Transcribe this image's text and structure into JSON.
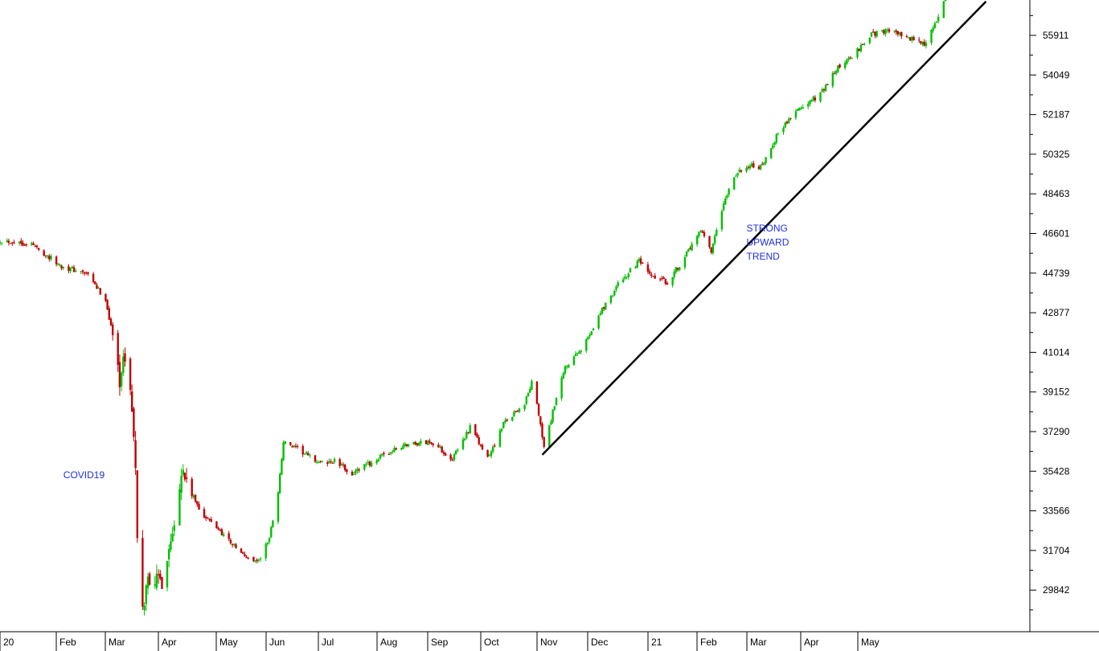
{
  "chart_data": {
    "type": "candlestick",
    "title": "",
    "xlabel": "",
    "ylabel": "",
    "ylim": [
      28400,
      57500
    ],
    "y_tick_labels": [
      "55911",
      "54049",
      "52187",
      "50325",
      "48463",
      "46601",
      "44739",
      "42877",
      "41014",
      "39152",
      "37290",
      "35428",
      "33566",
      "31704",
      "29842"
    ],
    "x_tick_labels": [
      "20",
      "Feb",
      "Mar",
      "Apr",
      "May",
      "Jun",
      "Jul",
      "Aug",
      "Sep",
      "Oct",
      "Nov",
      "Dec",
      "21",
      "Feb",
      "Mar",
      "Apr",
      "May"
    ],
    "x_range": [
      "2020-01-02",
      "2021-06-25"
    ],
    "colors": {
      "up": "#00c000",
      "down": "#c00000",
      "annotation": "#1f2fe0",
      "trendline": "#000000"
    },
    "grid": false,
    "legend": "none",
    "price_path": [
      [
        "2020-01-02",
        46300
      ],
      [
        "2020-01-20",
        46100
      ],
      [
        "2020-02-05",
        45100
      ],
      [
        "2020-02-20",
        44700
      ],
      [
        "2020-03-02",
        43500
      ],
      [
        "2020-03-06",
        41800
      ],
      [
        "2020-03-10",
        39800
      ],
      [
        "2020-03-13",
        40800
      ],
      [
        "2020-03-17",
        38500
      ],
      [
        "2020-03-19",
        35400
      ],
      [
        "2020-03-20",
        32000
      ],
      [
        "2020-03-23",
        28700
      ],
      [
        "2020-03-26",
        30500
      ],
      [
        "2020-03-31",
        30300
      ],
      [
        "2020-04-03",
        30300
      ],
      [
        "2020-04-08",
        32200
      ],
      [
        "2020-04-14",
        35500
      ],
      [
        "2020-04-20",
        34300
      ],
      [
        "2020-04-27",
        33300
      ],
      [
        "2020-05-04",
        32800
      ],
      [
        "2020-05-12",
        32100
      ],
      [
        "2020-05-20",
        31400
      ],
      [
        "2020-05-28",
        31200
      ],
      [
        "2020-06-03",
        32300
      ],
      [
        "2020-06-08",
        34500
      ],
      [
        "2020-06-11",
        36800
      ],
      [
        "2020-06-20",
        36400
      ],
      [
        "2020-07-02",
        35800
      ],
      [
        "2020-07-10",
        35900
      ],
      [
        "2020-07-20",
        35300
      ],
      [
        "2020-08-03",
        36000
      ],
      [
        "2020-08-20",
        36700
      ],
      [
        "2020-09-03",
        36800
      ],
      [
        "2020-09-15",
        36000
      ],
      [
        "2020-09-25",
        37500
      ],
      [
        "2020-10-05",
        36000
      ],
      [
        "2020-10-15",
        37800
      ],
      [
        "2020-10-26",
        38600
      ],
      [
        "2020-10-30",
        39600
      ],
      [
        "2020-11-03",
        38100
      ],
      [
        "2020-11-06",
        36500
      ],
      [
        "2020-11-11",
        38200
      ],
      [
        "2020-11-18",
        40300
      ],
      [
        "2020-11-27",
        41100
      ],
      [
        "2020-12-08",
        42900
      ],
      [
        "2020-12-18",
        44200
      ],
      [
        "2020-12-30",
        45300
      ],
      [
        "2021-01-05",
        44600
      ],
      [
        "2021-01-15",
        44300
      ],
      [
        "2021-01-25",
        45500
      ],
      [
        "2021-02-03",
        46700
      ],
      [
        "2021-02-09",
        45700
      ],
      [
        "2021-02-15",
        47700
      ],
      [
        "2021-02-22",
        49300
      ],
      [
        "2021-03-02",
        49800
      ],
      [
        "2021-03-10",
        49700
      ],
      [
        "2021-03-18",
        51200
      ],
      [
        "2021-03-28",
        52300
      ],
      [
        "2021-04-05",
        52700
      ],
      [
        "2021-04-12",
        53200
      ],
      [
        "2021-04-22",
        54400
      ],
      [
        "2021-04-30",
        54900
      ],
      [
        "2021-05-10",
        55900
      ],
      [
        "2021-05-20",
        56200
      ],
      [
        "2021-05-28",
        55900
      ],
      [
        "2021-06-10",
        55500
      ],
      [
        "2021-06-18",
        56700
      ],
      [
        "2021-06-22",
        57800
      ]
    ],
    "trendline": {
      "start": [
        "2020-11-05",
        36200
      ],
      "end": [
        "2021-07-15",
        57500
      ]
    },
    "annotations": [
      {
        "label": "COVID19",
        "anchor": [
          "2020-02-07",
          35100
        ],
        "lines": [
          "COVID19"
        ]
      },
      {
        "label": "trend",
        "anchor": [
          "2021-03-01",
          46700
        ],
        "lines": [
          "STRONG",
          "UPWARD",
          "TREND"
        ]
      }
    ]
  }
}
